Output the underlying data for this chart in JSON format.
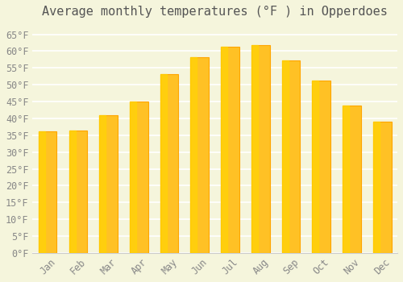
{
  "title": "Average monthly temperatures (°F ) in Opperdoes",
  "months": [
    "Jan",
    "Feb",
    "Mar",
    "Apr",
    "May",
    "Jun",
    "Jul",
    "Aug",
    "Sep",
    "Oct",
    "Nov",
    "Dec"
  ],
  "values": [
    36.1,
    36.3,
    41.0,
    45.1,
    53.2,
    58.1,
    61.2,
    61.7,
    57.2,
    51.3,
    43.7,
    39.0
  ],
  "bar_color_main": "#FFC125",
  "bar_color_edge": "#FFA500",
  "bar_color_gradient_top": "#FFD700",
  "background_color": "#F5F5DC",
  "grid_color": "#FFFFFF",
  "text_color": "#888888",
  "ylim": [
    0,
    68
  ],
  "yticks": [
    0,
    5,
    10,
    15,
    20,
    25,
    30,
    35,
    40,
    45,
    50,
    55,
    60,
    65
  ],
  "ytick_labels": [
    "0°F",
    "5°F",
    "10°F",
    "15°F",
    "20°F",
    "25°F",
    "30°F",
    "35°F",
    "40°F",
    "45°F",
    "50°F",
    "55°F",
    "60°F",
    "65°F"
  ],
  "title_fontsize": 11,
  "tick_fontsize": 8.5,
  "title_color": "#555555"
}
